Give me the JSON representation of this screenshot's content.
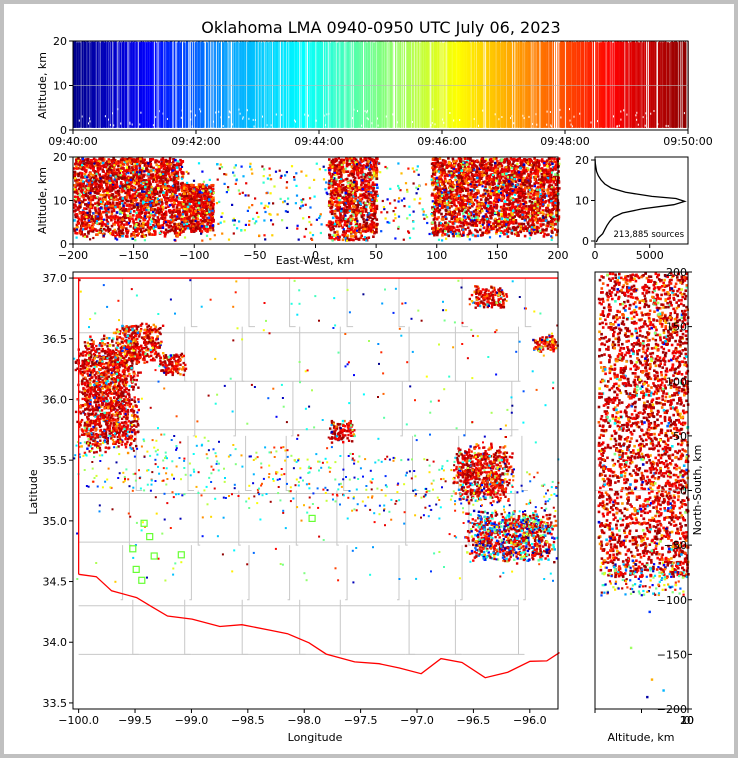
{
  "chart_data": [
    {
      "type": "scatter",
      "panel": "time-height",
      "title": "Oklahoma LMA 0940-0950 UTC July 06, 2023",
      "ylabel": "Altitude, km",
      "ylim": [
        0,
        20
      ],
      "yticks": [
        "0",
        "10",
        "20"
      ],
      "xticks": [
        "09:40:00",
        "09:42:00",
        "09:44:00",
        "09:46:00",
        "09:48:00",
        "09:50:00"
      ],
      "color_by": "time",
      "colormap": [
        "#00008b",
        "#0000ff",
        "#00a0ff",
        "#00ffff",
        "#80ff80",
        "#ffff00",
        "#ff8000",
        "#ff0000",
        "#8b0000"
      ],
      "altitude_band_km": [
        0.5,
        20
      ]
    },
    {
      "type": "scatter",
      "panel": "east-west-altitude",
      "xlabel": "East-West, km",
      "ylabel": "Altitude, km",
      "xlim": [
        -200,
        200
      ],
      "ylim": [
        0,
        20
      ],
      "xticks": [
        "−200",
        "−150",
        "−100",
        "−50",
        "0",
        "50",
        "100",
        "150",
        "200"
      ],
      "yticks": [
        "0",
        "10",
        "20"
      ],
      "clusters_km": [
        {
          "x": [
            -200,
            -110
          ],
          "alt": [
            2,
            20
          ]
        },
        {
          "x": [
            -110,
            -85
          ],
          "alt": [
            3,
            14
          ]
        },
        {
          "x": [
            10,
            50
          ],
          "alt": [
            1,
            20
          ]
        },
        {
          "x": [
            95,
            200
          ],
          "alt": [
            2,
            20
          ]
        }
      ]
    },
    {
      "type": "line",
      "panel": "altitude-histogram",
      "xlim": [
        0,
        8500
      ],
      "xticks": [
        "0",
        "5000"
      ],
      "yticks": [
        "0",
        "10",
        "20"
      ],
      "annotation": "213,885 sources",
      "profile": [
        {
          "alt": 0.0,
          "count": 120
        },
        {
          "alt": 1.0,
          "count": 300
        },
        {
          "alt": 2.0,
          "count": 700
        },
        {
          "alt": 3.0,
          "count": 900
        },
        {
          "alt": 4.0,
          "count": 1100
        },
        {
          "alt": 5.0,
          "count": 1350
        },
        {
          "alt": 6.0,
          "count": 1700
        },
        {
          "alt": 7.0,
          "count": 2500
        },
        {
          "alt": 8.0,
          "count": 4300
        },
        {
          "alt": 9.0,
          "count": 7200
        },
        {
          "alt": 9.8,
          "count": 8200
        },
        {
          "alt": 10.5,
          "count": 7400
        },
        {
          "alt": 11.0,
          "count": 5200
        },
        {
          "alt": 12.0,
          "count": 2800
        },
        {
          "alt": 13.0,
          "count": 1500
        },
        {
          "alt": 14.0,
          "count": 900
        },
        {
          "alt": 15.0,
          "count": 550
        },
        {
          "alt": 16.0,
          "count": 300
        },
        {
          "alt": 17.0,
          "count": 150
        },
        {
          "alt": 18.0,
          "count": 80
        },
        {
          "alt": 19.0,
          "count": 30
        },
        {
          "alt": 20.0,
          "count": 10
        }
      ]
    },
    {
      "type": "scatter",
      "panel": "plan-view",
      "xlabel": "Longitude",
      "ylabel": "Latitude",
      "xlim": [
        -100.05,
        -95.75
      ],
      "ylim": [
        33.45,
        37.05
      ],
      "xticks": [
        "−100.0",
        "−99.5",
        "−99.0",
        "−98.5",
        "−98.0",
        "−97.5",
        "−97.0",
        "−96.5",
        "−96.0"
      ],
      "yticks": [
        "33.5",
        "34.0",
        "34.5",
        "35.0",
        "35.5",
        "36.0",
        "36.5",
        "37.0"
      ],
      "clusters_deg": [
        {
          "lon": [
            -100.05,
            -99.45
          ],
          "lat": [
            35.55,
            36.55
          ]
        },
        {
          "lon": [
            -99.7,
            -99.25
          ],
          "lat": [
            36.3,
            36.65
          ]
        },
        {
          "lon": [
            -99.3,
            -99.05
          ],
          "lat": [
            36.2,
            36.4
          ]
        },
        {
          "lon": [
            -97.8,
            -97.55
          ],
          "lat": [
            35.65,
            35.85
          ]
        },
        {
          "lon": [
            -96.7,
            -96.15
          ],
          "lat": [
            35.15,
            35.65
          ]
        },
        {
          "lon": [
            -96.6,
            -95.75
          ],
          "lat": [
            34.65,
            35.1
          ]
        },
        {
          "lon": [
            -96.55,
            -96.2
          ],
          "lat": [
            36.75,
            36.95
          ]
        },
        {
          "lon": [
            -96.0,
            -95.75
          ],
          "lat": [
            36.4,
            36.55
          ]
        }
      ],
      "stations_deg": [
        {
          "lon": -99.42,
          "lat": 34.98
        },
        {
          "lon": -99.37,
          "lat": 34.87
        },
        {
          "lon": -99.52,
          "lat": 34.77
        },
        {
          "lon": -99.33,
          "lat": 34.71
        },
        {
          "lon": -99.09,
          "lat": 34.72
        },
        {
          "lon": -99.49,
          "lat": 34.6
        },
        {
          "lon": -99.44,
          "lat": 34.51
        },
        {
          "lon": -97.93,
          "lat": 35.02
        }
      ]
    },
    {
      "type": "scatter",
      "panel": "north-south-altitude",
      "xlabel": "Altitude, km",
      "ylabel": "North-South, km",
      "xlim": [
        0,
        20
      ],
      "ylim": [
        -200,
        200
      ],
      "xticks": [
        "0",
        "10",
        "20"
      ],
      "yticks": [
        "−200",
        "−150",
        "−100",
        "−50",
        "0",
        "50",
        "100",
        "150",
        "200"
      ]
    }
  ]
}
